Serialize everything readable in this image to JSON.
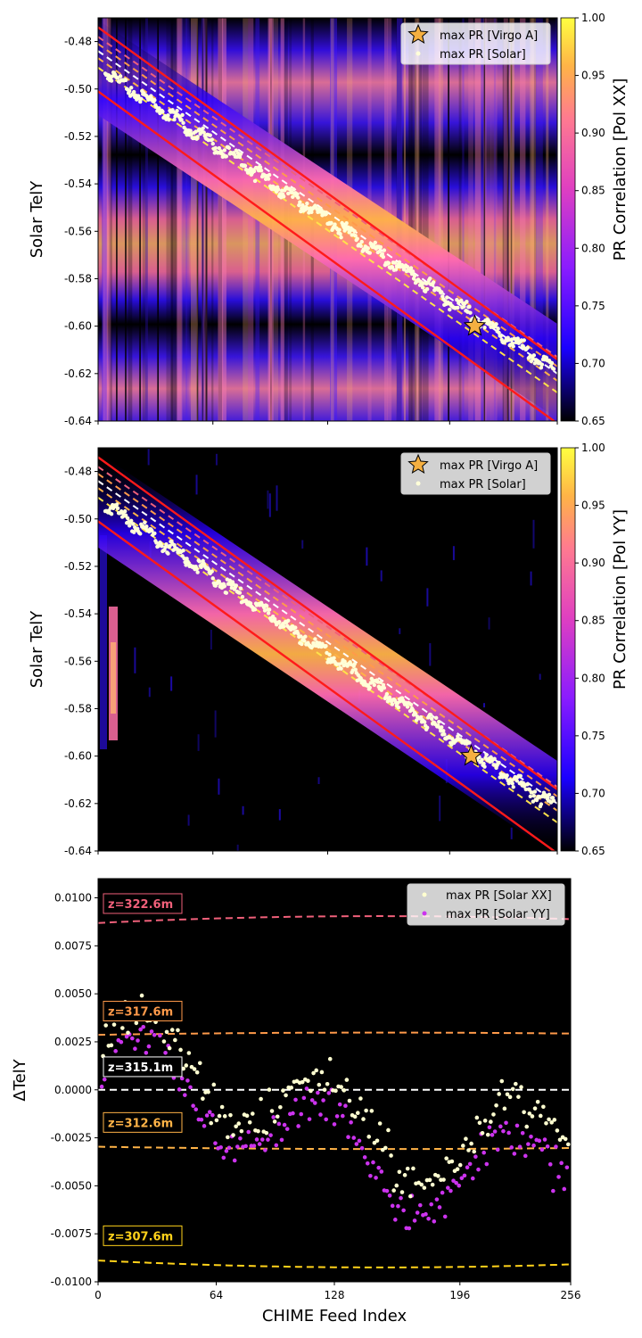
{
  "chart_data": [
    {
      "type": "heatmap",
      "title": "",
      "xlabel": "",
      "ylabel": "Solar TelY",
      "colorbar_label": "PR Correlation [Pol XX]",
      "colorbar_ticks": [
        "0.65",
        "0.70",
        "0.75",
        "0.80",
        "0.85",
        "0.90",
        "0.95",
        "1.00"
      ],
      "clim": [
        0.65,
        1.0
      ],
      "xlim": [
        0,
        256
      ],
      "ylim": [
        -0.64,
        -0.47
      ],
      "yticks": [
        "-0.48",
        "-0.50",
        "-0.52",
        "-0.54",
        "-0.56",
        "-0.58",
        "-0.60",
        "-0.62",
        "-0.64"
      ],
      "legend": [
        "max PR [Virgo A]",
        "max PR [Solar]"
      ],
      "virgo_star": {
        "x": 210,
        "y": -0.6
      },
      "solar_trend": {
        "y_start": -0.491,
        "y_end": -0.619
      },
      "bounds_red": [
        [
          -0.474,
          -0.614
        ],
        [
          -0.501,
          -0.641
        ]
      ],
      "bounds_dashed": [
        [
          -0.478,
          -0.613,
          "#f0607a"
        ],
        [
          -0.481,
          -0.617,
          "#ff9a4a"
        ],
        [
          -0.484,
          -0.62,
          "#ffffff"
        ],
        [
          -0.487,
          -0.623,
          "#ffb347"
        ],
        [
          -0.491,
          -0.628,
          "#ffe24a"
        ]
      ]
    },
    {
      "type": "heatmap",
      "title": "",
      "xlabel": "",
      "ylabel": "Solar TelY",
      "colorbar_label": "PR Correlation [Pol YY]",
      "colorbar_ticks": [
        "0.65",
        "0.70",
        "0.75",
        "0.80",
        "0.85",
        "0.90",
        "0.95",
        "1.00"
      ],
      "clim": [
        0.65,
        1.0
      ],
      "xlim": [
        0,
        256
      ],
      "ylim": [
        -0.64,
        -0.47
      ],
      "yticks": [
        "-0.48",
        "-0.50",
        "-0.52",
        "-0.54",
        "-0.56",
        "-0.58",
        "-0.60",
        "-0.62",
        "-0.64"
      ],
      "legend": [
        "max PR [Virgo A]",
        "max PR [Solar]"
      ],
      "virgo_star": {
        "x": 208,
        "y": -0.6
      },
      "solar_trend": {
        "y_start": -0.492,
        "y_end": -0.622
      },
      "bounds_red": [
        [
          -0.474,
          -0.614
        ],
        [
          -0.501,
          -0.641
        ]
      ],
      "bounds_dashed": [
        [
          -0.478,
          -0.613,
          "#f0607a"
        ],
        [
          -0.481,
          -0.617,
          "#ff9a4a"
        ],
        [
          -0.484,
          -0.62,
          "#ffffff"
        ],
        [
          -0.487,
          -0.623,
          "#ffb347"
        ],
        [
          -0.491,
          -0.628,
          "#ffe24a"
        ]
      ]
    },
    {
      "type": "scatter",
      "title": "",
      "xlabel": "CHIME Feed Index",
      "ylabel": "ΔTelY",
      "xlim": [
        0,
        256
      ],
      "ylim": [
        -0.01,
        0.011
      ],
      "xticks": [
        "0",
        "64",
        "128",
        "196",
        "256"
      ],
      "yticks": [
        "0.0100",
        "0.0075",
        "0.0050",
        "0.0025",
        "0.0000",
        "-0.0025",
        "-0.0050",
        "-0.0075",
        "-0.0100"
      ],
      "legend": [
        "max PR [Solar XX]",
        "max PR [Solar YY]"
      ],
      "series": [
        {
          "name": "max PR [Solar XX]",
          "color": "#ffffd0"
        },
        {
          "name": "max PR [Solar YY]",
          "color": "#cc33ee"
        }
      ],
      "z_lines": [
        {
          "label": "z=322.6m",
          "y": 0.0088,
          "color": "#f0607a"
        },
        {
          "label": "z=317.6m",
          "y": 0.0029,
          "color": "#ff9a4a"
        },
        {
          "label": "z=315.1m",
          "y": 0.0,
          "color": "#ffffff"
        },
        {
          "label": "z=312.6m",
          "y": -0.003,
          "color": "#ffb347"
        },
        {
          "label": "z=307.6m",
          "y": -0.009,
          "color": "#ffd21a"
        }
      ]
    }
  ],
  "colors": {
    "bound_red": "#ff1a1a",
    "star_fill": "#f5b041",
    "solar_points": "#ffffd8",
    "background": "#000000"
  }
}
